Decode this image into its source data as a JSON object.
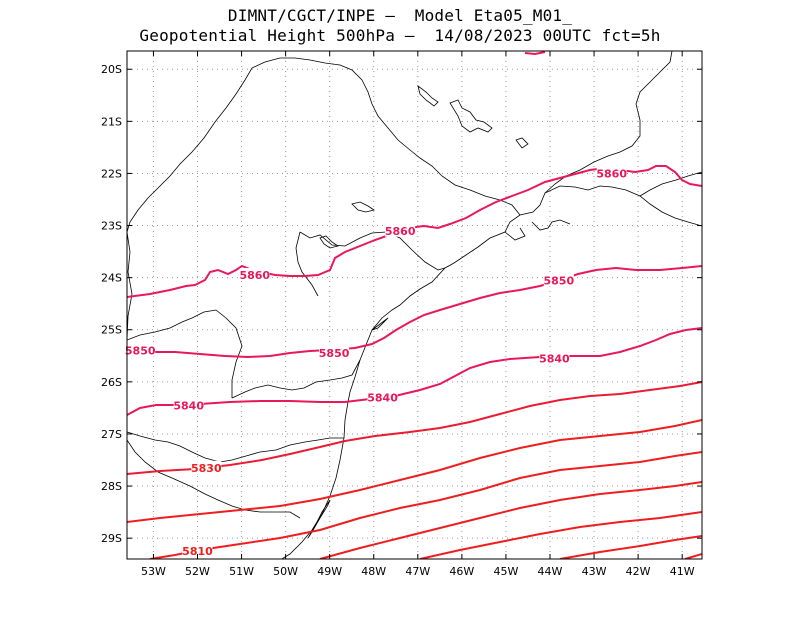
{
  "title": {
    "line1": "DIMNT/CGCT/INPE –  Model Eta05_M01_",
    "line2": "Geopotential Height 500hPa –  14/08/2023 00UTC fct=5h"
  },
  "axes": {
    "lon_labels": [
      "53W",
      "52W",
      "51W",
      "50W",
      "49W",
      "48W",
      "47W",
      "46W",
      "45W",
      "44W",
      "43W",
      "42W",
      "41W"
    ],
    "lat_labels": [
      "20S",
      "21S",
      "22S",
      "23S",
      "24S",
      "25S",
      "26S",
      "27S",
      "28S",
      "29S"
    ]
  },
  "colors": {
    "contour_pink": "#e8185a",
    "contour_red": "#ef1e1e",
    "coast": "#000000",
    "grid": "#9a9a9a"
  },
  "contours": {
    "labels": [
      {
        "text": "5860",
        "lon": -50.7,
        "lat": -23.95
      },
      {
        "text": "5860",
        "lon": -47.4,
        "lat": -23.1
      },
      {
        "text": "5860",
        "lon": -42.6,
        "lat": -22.0
      },
      {
        "text": "5850",
        "lon": -53.3,
        "lat": -25.4
      },
      {
        "text": "5850",
        "lon": -48.9,
        "lat": -25.45
      },
      {
        "text": "5850",
        "lon": -43.8,
        "lat": -24.05
      },
      {
        "text": "5840",
        "lon": -52.2,
        "lat": -26.45
      },
      {
        "text": "5840",
        "lon": -47.8,
        "lat": -26.3
      },
      {
        "text": "5840",
        "lon": -43.9,
        "lat": -25.55
      },
      {
        "text": "5830",
        "lon": -51.8,
        "lat": -27.65
      },
      {
        "text": "5810",
        "lon": -52.0,
        "lat": -29.25
      }
    ]
  }
}
